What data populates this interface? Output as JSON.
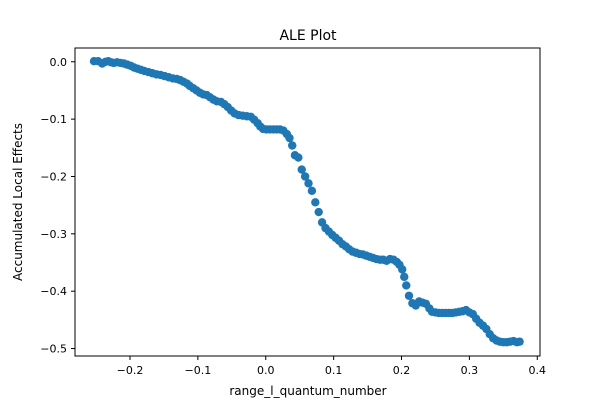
{
  "chart_data": {
    "type": "scatter",
    "title": "ALE Plot",
    "xlabel": "range_l_quantum_number",
    "ylabel": "Accumulated Local Effects",
    "xlim": [
      -0.281,
      0.404
    ],
    "ylim": [
      -0.513,
      0.024
    ],
    "xticks": [
      -0.2,
      -0.1,
      0.0,
      0.1,
      0.2,
      0.3,
      0.4
    ],
    "xtick_labels": [
      "−0.2",
      "−0.1",
      "0.0",
      "0.1",
      "0.2",
      "0.3",
      "0.4"
    ],
    "yticks": [
      0.0,
      -0.1,
      -0.2,
      -0.3,
      -0.4,
      -0.5
    ],
    "ytick_labels": [
      "0.0",
      "−0.1",
      "−0.2",
      "−0.3",
      "−0.4",
      "−0.5"
    ],
    "grid": false,
    "legend": false,
    "marker_color": "#1f77b4",
    "points": [
      [
        -0.253,
        0.001
      ],
      [
        -0.247,
        0.001
      ],
      [
        -0.241,
        -0.003
      ],
      [
        -0.236,
        0.0
      ],
      [
        -0.232,
        0.001
      ],
      [
        -0.228,
        -0.001
      ],
      [
        -0.224,
        -0.002
      ],
      [
        -0.219,
        -0.001
      ],
      [
        -0.214,
        -0.002
      ],
      [
        -0.209,
        -0.003
      ],
      [
        -0.204,
        -0.005
      ],
      [
        -0.199,
        -0.007
      ],
      [
        -0.194,
        -0.01
      ],
      [
        -0.189,
        -0.012
      ],
      [
        -0.184,
        -0.014
      ],
      [
        -0.179,
        -0.016
      ],
      [
        -0.173,
        -0.018
      ],
      [
        -0.167,
        -0.02
      ],
      [
        -0.161,
        -0.022
      ],
      [
        -0.155,
        -0.023
      ],
      [
        -0.149,
        -0.025
      ],
      [
        -0.143,
        -0.027
      ],
      [
        -0.137,
        -0.029
      ],
      [
        -0.131,
        -0.03
      ],
      [
        -0.126,
        -0.032
      ],
      [
        -0.121,
        -0.035
      ],
      [
        -0.116,
        -0.038
      ],
      [
        -0.112,
        -0.042
      ],
      [
        -0.107,
        -0.046
      ],
      [
        -0.102,
        -0.05
      ],
      [
        -0.097,
        -0.054
      ],
      [
        -0.092,
        -0.057
      ],
      [
        -0.087,
        -0.058
      ],
      [
        -0.082,
        -0.062
      ],
      [
        -0.077,
        -0.066
      ],
      [
        -0.072,
        -0.069
      ],
      [
        -0.066,
        -0.07
      ],
      [
        -0.061,
        -0.074
      ],
      [
        -0.056,
        -0.079
      ],
      [
        -0.051,
        -0.085
      ],
      [
        -0.046,
        -0.09
      ],
      [
        -0.04,
        -0.093
      ],
      [
        -0.034,
        -0.094
      ],
      [
        -0.028,
        -0.095
      ],
      [
        -0.022,
        -0.096
      ],
      [
        -0.017,
        -0.101
      ],
      [
        -0.012,
        -0.107
      ],
      [
        -0.008,
        -0.113
      ],
      [
        -0.004,
        -0.117
      ],
      [
        0.001,
        -0.118
      ],
      [
        0.006,
        -0.118
      ],
      [
        0.011,
        -0.118
      ],
      [
        0.016,
        -0.118
      ],
      [
        0.021,
        -0.118
      ],
      [
        0.026,
        -0.12
      ],
      [
        0.031,
        -0.126
      ],
      [
        0.035,
        -0.133
      ],
      [
        0.039,
        -0.146
      ],
      [
        0.043,
        -0.163
      ],
      [
        0.048,
        -0.167
      ],
      [
        0.053,
        -0.188
      ],
      [
        0.058,
        -0.2
      ],
      [
        0.063,
        -0.212
      ],
      [
        0.068,
        -0.225
      ],
      [
        0.073,
        -0.245
      ],
      [
        0.078,
        -0.262
      ],
      [
        0.083,
        -0.28
      ],
      [
        0.088,
        -0.29
      ],
      [
        0.093,
        -0.296
      ],
      [
        0.098,
        -0.302
      ],
      [
        0.103,
        -0.307
      ],
      [
        0.108,
        -0.312
      ],
      [
        0.113,
        -0.318
      ],
      [
        0.118,
        -0.322
      ],
      [
        0.123,
        -0.327
      ],
      [
        0.128,
        -0.331
      ],
      [
        0.133,
        -0.333
      ],
      [
        0.138,
        -0.335
      ],
      [
        0.143,
        -0.336
      ],
      [
        0.148,
        -0.338
      ],
      [
        0.153,
        -0.34
      ],
      [
        0.158,
        -0.342
      ],
      [
        0.163,
        -0.344
      ],
      [
        0.168,
        -0.345
      ],
      [
        0.173,
        -0.345
      ],
      [
        0.178,
        -0.347
      ],
      [
        0.183,
        -0.344
      ],
      [
        0.188,
        -0.345
      ],
      [
        0.193,
        -0.349
      ],
      [
        0.197,
        -0.354
      ],
      [
        0.201,
        -0.362
      ],
      [
        0.204,
        -0.375
      ],
      [
        0.207,
        -0.39
      ],
      [
        0.211,
        -0.408
      ],
      [
        0.216,
        -0.421
      ],
      [
        0.221,
        -0.425
      ],
      [
        0.226,
        -0.418
      ],
      [
        0.231,
        -0.42
      ],
      [
        0.236,
        -0.422
      ],
      [
        0.241,
        -0.43
      ],
      [
        0.245,
        -0.436
      ],
      [
        0.25,
        -0.437
      ],
      [
        0.255,
        -0.438
      ],
      [
        0.26,
        -0.438
      ],
      [
        0.265,
        -0.438
      ],
      [
        0.27,
        -0.438
      ],
      [
        0.275,
        -0.438
      ],
      [
        0.28,
        -0.437
      ],
      [
        0.285,
        -0.436
      ],
      [
        0.29,
        -0.435
      ],
      [
        0.295,
        -0.433
      ],
      [
        0.3,
        -0.437
      ],
      [
        0.305,
        -0.44
      ],
      [
        0.31,
        -0.448
      ],
      [
        0.315,
        -0.455
      ],
      [
        0.32,
        -0.46
      ],
      [
        0.325,
        -0.466
      ],
      [
        0.33,
        -0.475
      ],
      [
        0.335,
        -0.482
      ],
      [
        0.34,
        -0.486
      ],
      [
        0.345,
        -0.488
      ],
      [
        0.35,
        -0.489
      ],
      [
        0.355,
        -0.489
      ],
      [
        0.36,
        -0.488
      ],
      [
        0.365,
        -0.487
      ],
      [
        0.37,
        -0.489
      ],
      [
        0.374,
        -0.488
      ]
    ]
  }
}
